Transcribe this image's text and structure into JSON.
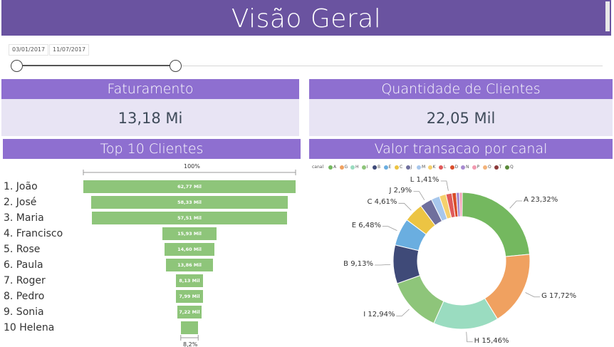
{
  "header": {
    "title": "Visão Geral"
  },
  "date_slicer": {
    "start": "03/01/2017",
    "end": "11/07/2017"
  },
  "kpis": [
    {
      "title": "Faturamento",
      "value": "13,18 Mi"
    },
    {
      "title": "Quantidade de Clientes",
      "value": "22,05 Mil"
    }
  ],
  "top10": {
    "title": "Top 10 Clientes",
    "top_percent": "100%",
    "bottom_percent": "8,2%",
    "clients": [
      {
        "label": "1.  João",
        "value_label": "62,77 Mil",
        "value": 62.77
      },
      {
        "label": "2. José",
        "value_label": "58,33 Mil",
        "value": 58.33
      },
      {
        "label": "3. Maria",
        "value_label": "57,51 Mil",
        "value": 57.51
      },
      {
        "label": "4. Francisco",
        "value_label": "15,93 Mil",
        "value": 15.93
      },
      {
        "label": "5. Rose",
        "value_label": "14,60 Mil",
        "value": 14.6
      },
      {
        "label": "6. Paula",
        "value_label": "13,86 Mil",
        "value": 13.86
      },
      {
        "label": "7. Roger",
        "value_label": "8,13 Mil",
        "value": 8.13
      },
      {
        "label": "8. Pedro",
        "value_label": "7,99 Mil",
        "value": 7.99
      },
      {
        "label": "9. Sonia",
        "value_label": "7,22 Mil",
        "value": 7.22
      },
      {
        "label": "10 Helena",
        "value_label": "",
        "value": 5.15
      }
    ]
  },
  "donut": {
    "title": "Valor transacao por canal",
    "legend_title": "canal",
    "legend": [
      {
        "name": "A",
        "color": "#74b85f"
      },
      {
        "name": "G",
        "color": "#f0a160"
      },
      {
        "name": "H",
        "color": "#9adcc0"
      },
      {
        "name": "I",
        "color": "#8ec57a"
      },
      {
        "name": "B",
        "color": "#3f4a78"
      },
      {
        "name": "E",
        "color": "#6aaee0"
      },
      {
        "name": "C",
        "color": "#ecc443"
      },
      {
        "name": "J",
        "color": "#6f6f9d"
      },
      {
        "name": "M",
        "color": "#a7c7ec"
      },
      {
        "name": "K",
        "color": "#f5d06d"
      },
      {
        "name": "L",
        "color": "#e05a5a"
      },
      {
        "name": "D",
        "color": "#d94e2a"
      },
      {
        "name": "N",
        "color": "#a88bd0"
      },
      {
        "name": "P",
        "color": "#f29ab0"
      },
      {
        "name": "O",
        "color": "#f3b37a"
      },
      {
        "name": "T",
        "color": "#8b3a3a"
      },
      {
        "name": "Q",
        "color": "#5a8a3a"
      }
    ]
  },
  "chart_data": {
    "type": "pie",
    "title": "Valor transacao por canal",
    "slices": [
      {
        "name": "A",
        "value": 23.32,
        "label": "A 23,32%",
        "color": "#74b85f"
      },
      {
        "name": "G",
        "value": 17.72,
        "label": "G 17,72%",
        "color": "#f0a160"
      },
      {
        "name": "H",
        "value": 15.46,
        "label": "H 15,46%",
        "color": "#9adcc0"
      },
      {
        "name": "I",
        "value": 12.94,
        "label": "I 12,94%",
        "color": "#8ec57a"
      },
      {
        "name": "B",
        "value": 9.13,
        "label": "B 9,13%",
        "color": "#3f4a78"
      },
      {
        "name": "E",
        "value": 6.48,
        "label": "E 6,48%",
        "color": "#6aaee0"
      },
      {
        "name": "C",
        "value": 4.61,
        "label": "C 4,61%",
        "color": "#ecc443"
      },
      {
        "name": "J",
        "value": 2.9,
        "label": "J 2,9%",
        "color": "#6f6f9d"
      },
      {
        "name": "M",
        "value": 2.0,
        "label": "",
        "color": "#a7c7ec"
      },
      {
        "name": "K",
        "value": 1.6,
        "label": "",
        "color": "#f5d06d"
      },
      {
        "name": "L",
        "value": 1.41,
        "label": "L 1,41%",
        "color": "#e05a5a"
      },
      {
        "name": "D",
        "value": 1.0,
        "label": "",
        "color": "#d94e2a"
      },
      {
        "name": "N",
        "value": 0.8,
        "label": "",
        "color": "#a88bd0"
      },
      {
        "name": "P",
        "value": 0.63,
        "label": "",
        "color": "#f29ab0"
      }
    ]
  }
}
